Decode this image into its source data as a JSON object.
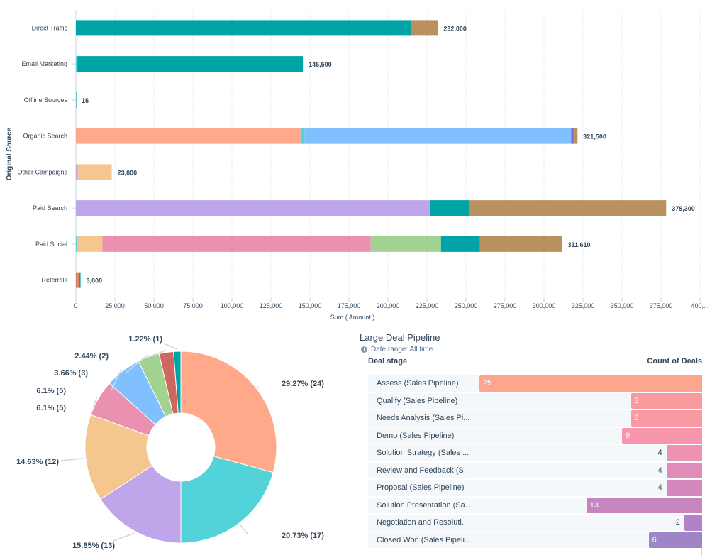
{
  "bar_chart_data": {
    "type": "bar",
    "orientation": "horizontal",
    "stacked": true,
    "ylabel": "Original Source",
    "xlabel": "Sum ( Amount )",
    "xlim": [
      0,
      400000
    ],
    "xticks": [
      "0",
      "25,000",
      "50,000",
      "75,000",
      "100,000",
      "125,000",
      "150,000",
      "175,000",
      "200,000",
      "225,000",
      "250,000",
      "275,000",
      "300,000",
      "325,000",
      "350,000",
      "375,000",
      "400,..."
    ],
    "categories": [
      "Direct Traffic",
      "Email Marketing",
      "Offline Sources",
      "Organic Search",
      "Other Campaigns",
      "Paid Search",
      "Paid Social",
      "Referrals"
    ],
    "totals": [
      "232,000",
      "145,500",
      "15",
      "321,500",
      "23,000",
      "378,300",
      "311,610",
      "3,000"
    ],
    "segments": [
      [
        {
          "value": 215000,
          "color": "#00a4a6"
        },
        {
          "value": 17000,
          "color": "#b9915e"
        }
      ],
      [
        {
          "value": 1000,
          "color": "#51d3d9"
        },
        {
          "value": 144500,
          "color": "#00a4a6"
        }
      ],
      [
        {
          "value": 15,
          "color": "#00a4a6"
        }
      ],
      [
        {
          "value": 144000,
          "color": "#ffa98a"
        },
        {
          "value": 2500,
          "color": "#51d3d9"
        },
        {
          "value": 171000,
          "color": "#80c0ff"
        },
        {
          "value": 1500,
          "color": "#7f69c8"
        },
        {
          "value": 2500,
          "color": "#b9915e"
        }
      ],
      [
        {
          "value": 1200,
          "color": "#bfa6ea"
        },
        {
          "value": 21800,
          "color": "#f5c78e"
        }
      ],
      [
        {
          "value": 227000,
          "color": "#bfa6ea"
        },
        {
          "value": 25000,
          "color": "#00a4a6"
        },
        {
          "value": 126300,
          "color": "#b9915e"
        }
      ],
      [
        {
          "value": 1000,
          "color": "#51d3d9"
        },
        {
          "value": 16000,
          "color": "#f5c78e"
        },
        {
          "value": 172000,
          "color": "#ea90b1"
        },
        {
          "value": 45000,
          "color": "#a2d28f"
        },
        {
          "value": 25000,
          "color": "#00a4a6"
        },
        {
          "value": 52610,
          "color": "#b9915e"
        }
      ],
      [
        {
          "value": 800,
          "color": "#b9915e"
        },
        {
          "value": 1000,
          "color": "#ff7a59"
        },
        {
          "value": 1200,
          "color": "#00a4a6"
        }
      ]
    ]
  },
  "pie_chart_data": {
    "type": "pie",
    "donut": true,
    "slices": [
      {
        "count": 24,
        "label": "29.27% (24)",
        "color": "#ffa98a"
      },
      {
        "count": 17,
        "label": "20.73% (17)",
        "color": "#51d3d9"
      },
      {
        "count": 13,
        "label": "15.85% (13)",
        "color": "#bfa6ea"
      },
      {
        "count": 12,
        "label": "14.63% (12)",
        "color": "#f5c78e"
      },
      {
        "count": 5,
        "label": "6.1% (5)",
        "color": "#ea90b1"
      },
      {
        "count": 5,
        "label": "6.1% (5)",
        "color": "#80c0ff"
      },
      {
        "count": 3,
        "label": "3.66% (3)",
        "color": "#a2d28f"
      },
      {
        "count": 2,
        "label": "2.44% (2)",
        "color": "#d0675e"
      },
      {
        "count": 1,
        "label": "1.22% (1)",
        "color": "#00a4a6"
      }
    ]
  },
  "pipeline": {
    "title": "Large Deal Pipeline",
    "date_range": "Date range: All time",
    "col_stage": "Deal stage",
    "col_count": "Count of Deals",
    "max": 25,
    "rows": [
      {
        "label": "Assess (Sales Pipeline)",
        "count": 25,
        "color": "#fea58e"
      },
      {
        "label": "Qualify (Sales Pipeline)",
        "count": 8,
        "color": "#f99a9e"
      },
      {
        "label": "Needs Analysis (Sales Pi...",
        "count": 8,
        "color": "#f899a4"
      },
      {
        "label": "Demo (Sales Pipeline)",
        "count": 9,
        "color": "#f596ac"
      },
      {
        "label": "Solution Strategy (Sales ...",
        "count": 4,
        "color": "#ee92b3"
      },
      {
        "label": "Review and Feedback (S...",
        "count": 4,
        "color": "#e08bb8"
      },
      {
        "label": "Proposal (Sales Pipeline)",
        "count": 4,
        "color": "#d487bc"
      },
      {
        "label": "Solution Presentation (Sa...",
        "count": 13,
        "color": "#c685c1"
      },
      {
        "label": "Negotiation and Resoluti...",
        "count": 2,
        "color": "#b382c6"
      },
      {
        "label": "Closed Won (Sales Pipeli...",
        "count": 6,
        "color": "#9e85c8"
      }
    ]
  }
}
